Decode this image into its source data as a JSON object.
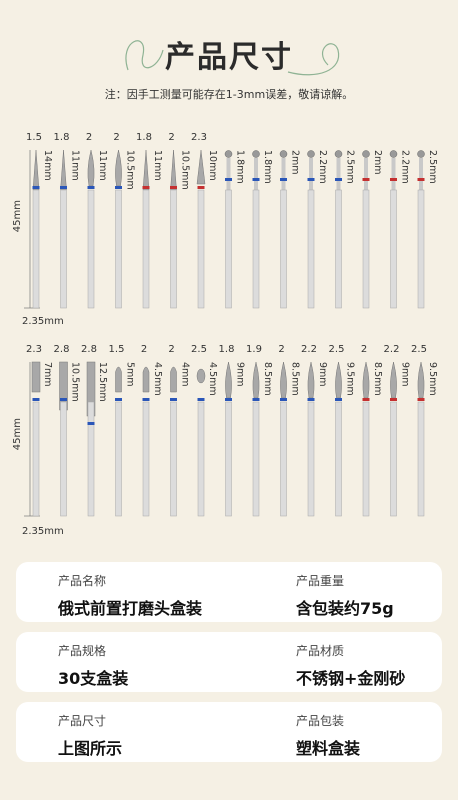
{
  "title": "产品尺寸",
  "note": "注：因手工测量可能存在1-3mm误差，敬请谅解。",
  "length_label": "45mm",
  "shank_label": "2.35mm",
  "colors": {
    "blue": "#2a56b8",
    "red": "#c43030",
    "steel": "#c9c9c9",
    "bg": "#f5f0e4"
  },
  "row1": [
    {
      "d": "1.5",
      "l": "14mm",
      "shape": "taper",
      "band": "blue"
    },
    {
      "d": "1.8",
      "l": "11mm",
      "shape": "taper",
      "band": "blue"
    },
    {
      "d": "2",
      "l": "11mm",
      "shape": "flame",
      "band": "blue"
    },
    {
      "d": "2",
      "l": "10.5mm",
      "shape": "flame",
      "band": "blue"
    },
    {
      "d": "1.8",
      "l": "11mm",
      "shape": "taper",
      "band": "red"
    },
    {
      "d": "2",
      "l": "10.5mm",
      "shape": "taper",
      "band": "red"
    },
    {
      "d": "2.3",
      "l": "10mm",
      "shape": "cone",
      "band": "red"
    },
    {
      "d": "",
      "l": "1.8mm",
      "shape": "ball",
      "band": "blue"
    },
    {
      "d": "",
      "l": "1.8mm",
      "shape": "ball",
      "band": "blue"
    },
    {
      "d": "",
      "l": "2mm",
      "shape": "ball",
      "band": "blue"
    },
    {
      "d": "",
      "l": "2.2mm",
      "shape": "ball",
      "band": "blue"
    },
    {
      "d": "",
      "l": "2.5mm",
      "shape": "ball",
      "band": "blue"
    },
    {
      "d": "",
      "l": "2mm",
      "shape": "ball",
      "band": "red"
    },
    {
      "d": "",
      "l": "2.2mm",
      "shape": "ball",
      "band": "red"
    },
    {
      "d": "",
      "l": "2.5mm",
      "shape": "ball",
      "band": "red"
    }
  ],
  "row2": [
    {
      "d": "2.3",
      "l": "7mm",
      "shape": "cyl",
      "band": "blue"
    },
    {
      "d": "2.8",
      "l": "10.5mm",
      "shape": "cyl",
      "band": "blue"
    },
    {
      "d": "2.8",
      "l": "12.5mm",
      "shape": "cyl",
      "band": "blue"
    },
    {
      "d": "1.5",
      "l": "5mm",
      "shape": "bullet",
      "band": "blue"
    },
    {
      "d": "2",
      "l": "4.5mm",
      "shape": "bullet",
      "band": "blue"
    },
    {
      "d": "2",
      "l": "4mm",
      "shape": "bullet",
      "band": "blue"
    },
    {
      "d": "2.5",
      "l": "4.5mm",
      "shape": "egg",
      "band": "blue"
    },
    {
      "d": "1.8",
      "l": "9mm",
      "shape": "flame",
      "band": "blue"
    },
    {
      "d": "1.9",
      "l": "8.5mm",
      "shape": "flame",
      "band": "blue"
    },
    {
      "d": "2",
      "l": "8.5mm",
      "shape": "flame",
      "band": "blue"
    },
    {
      "d": "2.2",
      "l": "9mm",
      "shape": "flame",
      "band": "blue"
    },
    {
      "d": "2.5",
      "l": "9.5mm",
      "shape": "flame",
      "band": "blue"
    },
    {
      "d": "2",
      "l": "8.5mm",
      "shape": "flame",
      "band": "red"
    },
    {
      "d": "2.2",
      "l": "9mm",
      "shape": "flame",
      "band": "red"
    },
    {
      "d": "2.5",
      "l": "9.5mm",
      "shape": "flame",
      "band": "red"
    }
  ],
  "info": [
    {
      "left_label": "产品名称",
      "left_value": "俄式前置打磨头盒装",
      "right_label": "产品重量",
      "right_value": "含包装约75g"
    },
    {
      "left_label": "产品规格",
      "left_value": "30支盒装",
      "right_label": "产品材质",
      "right_value": "不锈钢+金刚砂"
    },
    {
      "left_label": "产品尺寸",
      "left_value": "上图所示",
      "right_label": "产品包装",
      "right_value": "塑料盒装"
    }
  ]
}
